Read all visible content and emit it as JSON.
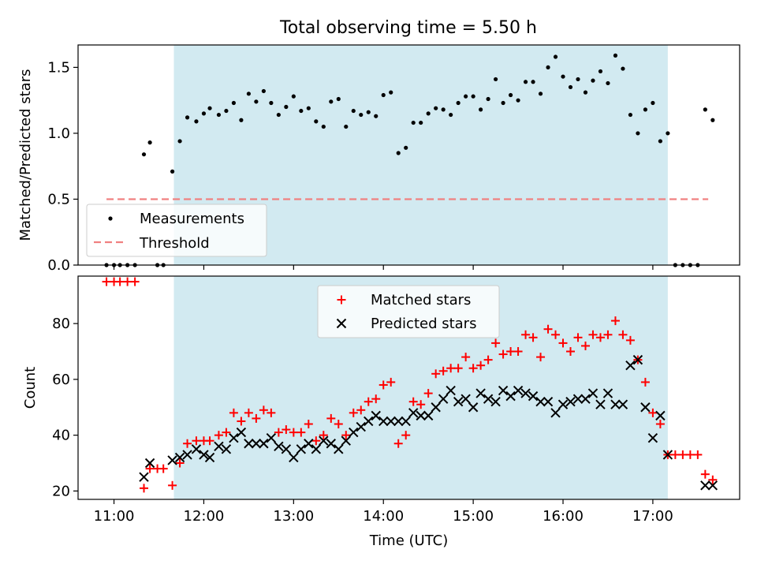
{
  "figure_title": "Total observing time = 5.50 h",
  "colors": {
    "shade": "#add8e6",
    "measurement": "#000000",
    "threshold": "#f08080",
    "matched": "#ff0000",
    "predicted": "#000000"
  },
  "chart_data": [
    {
      "type": "scatter",
      "title": "Total observing time = 5.50 h",
      "ylabel": "Matched/Predicted stars",
      "xlabel": "",
      "xlim": [
        "10:36",
        "17:58"
      ],
      "ylim": [
        0,
        1.67
      ],
      "yticks": [
        0.0,
        0.5,
        1.0,
        1.5
      ],
      "ytick_labels": [
        "0.0",
        "0.5",
        "1.0",
        "1.5"
      ],
      "shaded_span": [
        "11:40",
        "17:10"
      ],
      "legend": {
        "position": "lower left",
        "entries": [
          "Measurements",
          "Threshold"
        ]
      },
      "threshold": {
        "name": "Threshold",
        "y": 0.5,
        "x_range": [
          "10:55",
          "17:37"
        ]
      },
      "series": [
        {
          "name": "Measurements",
          "marker": "dot",
          "points": [
            [
              "10:55",
              0
            ],
            [
              "11:00",
              0
            ],
            [
              "11:04",
              0
            ],
            [
              "11:09",
              0
            ],
            [
              "11:14",
              0
            ],
            [
              "11:20",
              0.84
            ],
            [
              "11:24",
              0.93
            ],
            [
              "11:29",
              0
            ],
            [
              "11:33",
              0
            ],
            [
              "11:39",
              0.71
            ],
            [
              "11:44",
              0.94
            ],
            [
              "11:49",
              1.12
            ],
            [
              "11:55",
              1.09
            ],
            [
              "12:00",
              1.15
            ],
            [
              "12:04",
              1.19
            ],
            [
              "12:10",
              1.14
            ],
            [
              "12:15",
              1.17
            ],
            [
              "12:20",
              1.23
            ],
            [
              "12:25",
              1.1
            ],
            [
              "12:30",
              1.3
            ],
            [
              "12:35",
              1.24
            ],
            [
              "12:40",
              1.32
            ],
            [
              "12:45",
              1.23
            ],
            [
              "12:50",
              1.14
            ],
            [
              "12:55",
              1.2
            ],
            [
              "13:00",
              1.28
            ],
            [
              "13:05",
              1.17
            ],
            [
              "13:10",
              1.19
            ],
            [
              "13:15",
              1.09
            ],
            [
              "13:20",
              1.05
            ],
            [
              "13:25",
              1.24
            ],
            [
              "13:30",
              1.26
            ],
            [
              "13:35",
              1.05
            ],
            [
              "13:40",
              1.17
            ],
            [
              "13:45",
              1.14
            ],
            [
              "13:50",
              1.16
            ],
            [
              "13:55",
              1.13
            ],
            [
              "14:00",
              1.29
            ],
            [
              "14:05",
              1.31
            ],
            [
              "14:10",
              0.85
            ],
            [
              "14:15",
              0.89
            ],
            [
              "14:20",
              1.08
            ],
            [
              "14:25",
              1.08
            ],
            [
              "14:30",
              1.15
            ],
            [
              "14:35",
              1.19
            ],
            [
              "14:40",
              1.18
            ],
            [
              "14:45",
              1.14
            ],
            [
              "14:50",
              1.23
            ],
            [
              "14:55",
              1.28
            ],
            [
              "15:00",
              1.28
            ],
            [
              "15:05",
              1.18
            ],
            [
              "15:10",
              1.26
            ],
            [
              "15:15",
              1.41
            ],
            [
              "15:20",
              1.23
            ],
            [
              "15:25",
              1.29
            ],
            [
              "15:30",
              1.25
            ],
            [
              "15:35",
              1.39
            ],
            [
              "15:40",
              1.39
            ],
            [
              "15:45",
              1.3
            ],
            [
              "15:50",
              1.5
            ],
            [
              "15:55",
              1.58
            ],
            [
              "16:00",
              1.43
            ],
            [
              "16:05",
              1.35
            ],
            [
              "16:10",
              1.41
            ],
            [
              "16:15",
              1.31
            ],
            [
              "16:20",
              1.4
            ],
            [
              "16:25",
              1.47
            ],
            [
              "16:30",
              1.38
            ],
            [
              "16:35",
              1.59
            ],
            [
              "16:40",
              1.49
            ],
            [
              "16:45",
              1.14
            ],
            [
              "16:50",
              1.0
            ],
            [
              "16:55",
              1.18
            ],
            [
              "17:00",
              1.23
            ],
            [
              "17:05",
              0.94
            ],
            [
              "17:10",
              1.0
            ],
            [
              "17:15",
              0
            ],
            [
              "17:20",
              0
            ],
            [
              "17:25",
              0
            ],
            [
              "17:30",
              0
            ],
            [
              "17:35",
              1.18
            ],
            [
              "17:40",
              1.1
            ]
          ]
        }
      ]
    },
    {
      "type": "scatter",
      "title": "",
      "ylabel": "Count",
      "xlabel": "Time (UTC)",
      "xlim": [
        "10:36",
        "17:58"
      ],
      "ylim": [
        17,
        97
      ],
      "yticks": [
        20,
        40,
        60,
        80
      ],
      "ytick_labels": [
        "20",
        "40",
        "60",
        "80"
      ],
      "xticks": [
        "11:00",
        "12:00",
        "13:00",
        "14:00",
        "15:00",
        "16:00",
        "17:00"
      ],
      "xtick_labels": [
        "11:00",
        "12:00",
        "13:00",
        "14:00",
        "15:00",
        "16:00",
        "17:00"
      ],
      "shaded_span": [
        "11:40",
        "17:10"
      ],
      "legend": {
        "position": "upper center",
        "entries": [
          "Matched stars",
          "Predicted stars"
        ]
      },
      "series": [
        {
          "name": "Matched stars",
          "marker": "plus",
          "points": [
            [
              "10:55",
              95
            ],
            [
              "11:00",
              95
            ],
            [
              "11:04",
              95
            ],
            [
              "11:09",
              95
            ],
            [
              "11:14",
              95
            ],
            [
              "11:20",
              21
            ],
            [
              "11:24",
              28
            ],
            [
              "11:29",
              28
            ],
            [
              "11:33",
              28
            ],
            [
              "11:39",
              22
            ],
            [
              "11:44",
              30
            ],
            [
              "11:49",
              37
            ],
            [
              "11:55",
              38
            ],
            [
              "12:00",
              38
            ],
            [
              "12:04",
              38
            ],
            [
              "12:10",
              40
            ],
            [
              "12:15",
              41
            ],
            [
              "12:20",
              48
            ],
            [
              "12:25",
              45
            ],
            [
              "12:30",
              48
            ],
            [
              "12:35",
              46
            ],
            [
              "12:40",
              49
            ],
            [
              "12:45",
              48
            ],
            [
              "12:50",
              41
            ],
            [
              "12:55",
              42
            ],
            [
              "13:00",
              41
            ],
            [
              "13:05",
              41
            ],
            [
              "13:10",
              44
            ],
            [
              "13:15",
              38
            ],
            [
              "13:20",
              40
            ],
            [
              "13:25",
              46
            ],
            [
              "13:30",
              44
            ],
            [
              "13:35",
              40
            ],
            [
              "13:40",
              48
            ],
            [
              "13:45",
              49
            ],
            [
              "13:50",
              52
            ],
            [
              "13:55",
              53
            ],
            [
              "14:00",
              58
            ],
            [
              "14:05",
              59
            ],
            [
              "14:10",
              37
            ],
            [
              "14:15",
              40
            ],
            [
              "14:20",
              52
            ],
            [
              "14:25",
              51
            ],
            [
              "14:30",
              55
            ],
            [
              "14:35",
              62
            ],
            [
              "14:40",
              63
            ],
            [
              "14:45",
              64
            ],
            [
              "14:50",
              64
            ],
            [
              "14:55",
              68
            ],
            [
              "15:00",
              64
            ],
            [
              "15:05",
              65
            ],
            [
              "15:10",
              67
            ],
            [
              "15:15",
              73
            ],
            [
              "15:20",
              69
            ],
            [
              "15:25",
              70
            ],
            [
              "15:30",
              70
            ],
            [
              "15:35",
              76
            ],
            [
              "15:40",
              75
            ],
            [
              "15:45",
              68
            ],
            [
              "15:50",
              78
            ],
            [
              "15:55",
              76
            ],
            [
              "16:00",
              73
            ],
            [
              "16:05",
              70
            ],
            [
              "16:10",
              75
            ],
            [
              "16:15",
              72
            ],
            [
              "16:20",
              76
            ],
            [
              "16:25",
              75
            ],
            [
              "16:30",
              76
            ],
            [
              "16:35",
              81
            ],
            [
              "16:40",
              76
            ],
            [
              "16:45",
              74
            ],
            [
              "16:50",
              67
            ],
            [
              "16:55",
              59
            ],
            [
              "17:00",
              48
            ],
            [
              "17:05",
              44
            ],
            [
              "17:10",
              33
            ],
            [
              "17:15",
              33
            ],
            [
              "17:20",
              33
            ],
            [
              "17:25",
              33
            ],
            [
              "17:30",
              33
            ],
            [
              "17:35",
              26
            ],
            [
              "17:40",
              24
            ]
          ]
        },
        {
          "name": "Predicted stars",
          "marker": "x",
          "points": [
            [
              "11:20",
              25
            ],
            [
              "11:24",
              30
            ],
            [
              "11:39",
              31
            ],
            [
              "11:44",
              32
            ],
            [
              "11:49",
              33
            ],
            [
              "11:55",
              35
            ],
            [
              "12:00",
              33
            ],
            [
              "12:04",
              32
            ],
            [
              "12:10",
              36
            ],
            [
              "12:15",
              35
            ],
            [
              "12:20",
              39
            ],
            [
              "12:25",
              41
            ],
            [
              "12:30",
              37
            ],
            [
              "12:35",
              37
            ],
            [
              "12:40",
              37
            ],
            [
              "12:45",
              39
            ],
            [
              "12:50",
              36
            ],
            [
              "12:55",
              35
            ],
            [
              "13:00",
              32
            ],
            [
              "13:05",
              35
            ],
            [
              "13:10",
              37
            ],
            [
              "13:15",
              35
            ],
            [
              "13:20",
              38
            ],
            [
              "13:25",
              37
            ],
            [
              "13:30",
              35
            ],
            [
              "13:35",
              38
            ],
            [
              "13:40",
              41
            ],
            [
              "13:45",
              43
            ],
            [
              "13:50",
              45
            ],
            [
              "13:55",
              47
            ],
            [
              "14:00",
              45
            ],
            [
              "14:05",
              45
            ],
            [
              "14:10",
              45
            ],
            [
              "14:15",
              45
            ],
            [
              "14:20",
              48
            ],
            [
              "14:25",
              47
            ],
            [
              "14:30",
              47
            ],
            [
              "14:35",
              50
            ],
            [
              "14:40",
              53
            ],
            [
              "14:45",
              56
            ],
            [
              "14:50",
              52
            ],
            [
              "14:55",
              53
            ],
            [
              "15:00",
              50
            ],
            [
              "15:05",
              55
            ],
            [
              "15:10",
              53
            ],
            [
              "15:15",
              52
            ],
            [
              "15:20",
              56
            ],
            [
              "15:25",
              54
            ],
            [
              "15:30",
              56
            ],
            [
              "15:35",
              55
            ],
            [
              "15:40",
              54
            ],
            [
              "15:45",
              52
            ],
            [
              "15:50",
              52
            ],
            [
              "15:55",
              48
            ],
            [
              "16:00",
              51
            ],
            [
              "16:05",
              52
            ],
            [
              "16:10",
              53
            ],
            [
              "16:15",
              53
            ],
            [
              "16:20",
              55
            ],
            [
              "16:25",
              51
            ],
            [
              "16:30",
              55
            ],
            [
              "16:35",
              51
            ],
            [
              "16:40",
              51
            ],
            [
              "16:45",
              65
            ],
            [
              "16:50",
              67
            ],
            [
              "16:55",
              50
            ],
            [
              "17:00",
              39
            ],
            [
              "17:05",
              47
            ],
            [
              "17:10",
              33
            ],
            [
              "17:35",
              22
            ],
            [
              "17:40",
              22
            ]
          ]
        }
      ]
    }
  ]
}
